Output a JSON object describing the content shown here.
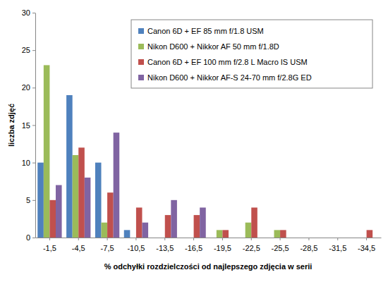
{
  "chart_data": {
    "type": "bar",
    "x_label": "% odchyłki rozdzielczości od najlepszego zdjęcia w serii",
    "y_label": "liczba zdjęć",
    "categories": [
      "-1,5",
      "-4,5",
      "-7,5",
      "-10,5",
      "-13,5",
      "-16,5",
      "-19,5",
      "-22,5",
      "-25,5",
      "-28,5",
      "-31,5",
      "-34,5"
    ],
    "series": [
      {
        "name": "Canon 6D + EF 85 mm f/1.8 USM",
        "color": "#4f81bd",
        "values": [
          10,
          19,
          10,
          1,
          0,
          0,
          0,
          0,
          0,
          0,
          0,
          0
        ]
      },
      {
        "name": "Nikon D600 + Nikkor AF 50 mm f/1.8D",
        "color": "#9bbb59",
        "values": [
          23,
          11,
          2,
          0,
          0,
          0,
          1,
          2,
          1,
          0,
          0,
          0
        ]
      },
      {
        "name": "Canon 6D + EF 100 mm f/2.8 L Macro IS USM",
        "color": "#c0504d",
        "values": [
          5,
          12,
          6,
          4,
          3,
          3,
          1,
          4,
          1,
          0,
          0,
          1
        ]
      },
      {
        "name": "Nikon D600 + Nikkor AF-S 24-70 mm f/2.8G ED",
        "color": "#8064a2",
        "values": [
          7,
          8,
          14,
          2,
          5,
          4,
          0,
          0,
          0,
          0,
          0,
          0
        ]
      }
    ],
    "ylim": [
      0,
      30
    ],
    "yticks": [
      0,
      5,
      10,
      15,
      20,
      25,
      30
    ],
    "grid": false,
    "legend": "top-right"
  }
}
